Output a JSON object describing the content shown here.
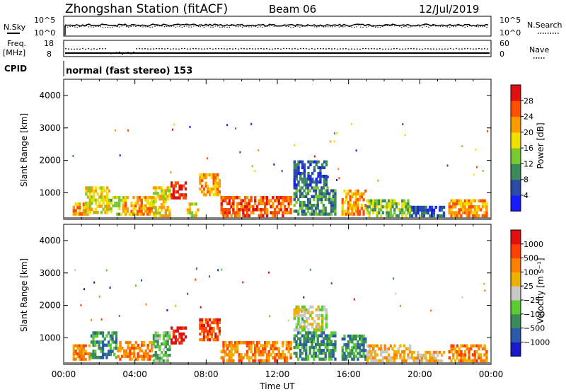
{
  "header": {
    "station": "Zhongshan Station (fitACF)",
    "beam": "Beam 06",
    "date": "12/Jul/2019"
  },
  "noise_panel": {
    "left_label": "N.Sky",
    "right_label": "N.Search",
    "left_ticks": [
      "10^5",
      "10^0"
    ],
    "right_ticks": [
      "10^5",
      "10^0"
    ]
  },
  "freq_panel": {
    "left_label_1": "Freq.",
    "left_label_2": "[MHz]",
    "left_ticks": [
      "18",
      "8"
    ],
    "right_ticks": [
      "60",
      "0"
    ],
    "right_label": "Nave",
    "cpid_label": "CPID",
    "cpid_text": "normal (fast stereo) 153"
  },
  "chart_data": [
    {
      "type": "heatmap",
      "quantity": "Power",
      "ylabel": "Slant Range [km]",
      "yticks": [
        "1000",
        "2000",
        "3000",
        "4000"
      ],
      "ylim": [
        180,
        4500
      ],
      "xlim_hours": [
        0,
        24
      ],
      "colorbar": {
        "label": "Power [dB]",
        "ticks": [
          "4",
          "8",
          "12",
          "16",
          "20",
          "24",
          "28"
        ],
        "colors": [
          "#1a1aff",
          "#2a4aa8",
          "#3a8a5a",
          "#7ac832",
          "#f0e000",
          "#ff9a00",
          "#ff5000",
          "#e01010"
        ]
      },
      "regions": [
        {
          "t0": 0.5,
          "t1": 1.4,
          "r0": 300,
          "r1": 700,
          "level": 5
        },
        {
          "t0": 1.2,
          "t1": 2.6,
          "r0": 350,
          "r1": 1200,
          "level": 4
        },
        {
          "t0": 2.6,
          "t1": 3.4,
          "r0": 300,
          "r1": 900,
          "level": 3
        },
        {
          "t0": 3.3,
          "t1": 5.1,
          "r0": 300,
          "r1": 900,
          "level": 5
        },
        {
          "t0": 5.0,
          "t1": 6.0,
          "r0": 250,
          "r1": 1200,
          "level": 4
        },
        {
          "t0": 6.0,
          "t1": 6.9,
          "r0": 800,
          "r1": 1350,
          "level": 7
        },
        {
          "t0": 6.9,
          "t1": 7.6,
          "r0": 250,
          "r1": 700,
          "level": 4
        },
        {
          "t0": 7.6,
          "t1": 8.8,
          "r0": 900,
          "r1": 1600,
          "level": 5
        },
        {
          "t0": 8.8,
          "t1": 12.8,
          "r0": 250,
          "r1": 900,
          "level": 6
        },
        {
          "t0": 12.9,
          "t1": 14.8,
          "r0": 1200,
          "r1": 2000,
          "level": 1
        },
        {
          "t0": 12.9,
          "t1": 15.3,
          "r0": 300,
          "r1": 1200,
          "level": 2
        },
        {
          "t0": 15.6,
          "t1": 17.0,
          "r0": 300,
          "r1": 1100,
          "level": 5
        },
        {
          "t0": 17.0,
          "t1": 19.5,
          "r0": 250,
          "r1": 800,
          "level": 3
        },
        {
          "t0": 19.5,
          "t1": 21.4,
          "r0": 250,
          "r1": 600,
          "level": 1
        },
        {
          "t0": 21.6,
          "t1": 23.8,
          "r0": 250,
          "r1": 800,
          "level": 5
        }
      ]
    },
    {
      "type": "heatmap",
      "quantity": "Velocity",
      "ylabel": "Slant Range [km]",
      "yticks": [
        "1000",
        "2000",
        "3000",
        "4000"
      ],
      "ylim": [
        180,
        4500
      ],
      "xlim_hours": [
        0,
        24
      ],
      "xticks": [
        "00:00",
        "04:00",
        "08:00",
        "12:00",
        "16:00",
        "20:00",
        "00:00"
      ],
      "xlabel": "Time UT",
      "colorbar": {
        "label": "Velocity [m s⁻¹]",
        "ticks": [
          "1000",
          "500",
          "100",
          "25",
          "−25",
          "−100",
          "−500",
          "−1000"
        ],
        "colors": [
          "#1a1acc",
          "#2a5aa8",
          "#3a8a5a",
          "#5acc32",
          "#c8c8c8",
          "#f0b000",
          "#ff8000",
          "#ff4000",
          "#e01010"
        ]
      },
      "regions": [
        {
          "t0": 0.5,
          "t1": 1.5,
          "r0": 300,
          "r1": 800,
          "level": 6
        },
        {
          "t0": 1.5,
          "t1": 3.0,
          "r0": 350,
          "r1": 1200,
          "level": 2
        },
        {
          "t0": 3.0,
          "t1": 5.0,
          "r0": 300,
          "r1": 900,
          "level": 6
        },
        {
          "t0": 5.0,
          "t1": 6.0,
          "r0": 250,
          "r1": 1200,
          "level": 3
        },
        {
          "t0": 6.0,
          "t1": 6.9,
          "r0": 800,
          "r1": 1350,
          "level": 8
        },
        {
          "t0": 7.6,
          "t1": 8.8,
          "r0": 900,
          "r1": 1600,
          "level": 7
        },
        {
          "t0": 8.8,
          "t1": 12.8,
          "r0": 250,
          "r1": 900,
          "level": 6
        },
        {
          "t0": 12.9,
          "t1": 14.8,
          "r0": 1200,
          "r1": 2000,
          "level": 4
        },
        {
          "t0": 12.9,
          "t1": 15.3,
          "r0": 300,
          "r1": 1200,
          "level": 2
        },
        {
          "t0": 15.6,
          "t1": 17.0,
          "r0": 300,
          "r1": 1100,
          "level": 2
        },
        {
          "t0": 17.0,
          "t1": 19.5,
          "r0": 250,
          "r1": 800,
          "level": 5
        },
        {
          "t0": 19.5,
          "t1": 21.4,
          "r0": 250,
          "r1": 600,
          "level": 5
        },
        {
          "t0": 21.6,
          "t1": 23.8,
          "r0": 250,
          "r1": 800,
          "level": 6
        }
      ]
    }
  ]
}
